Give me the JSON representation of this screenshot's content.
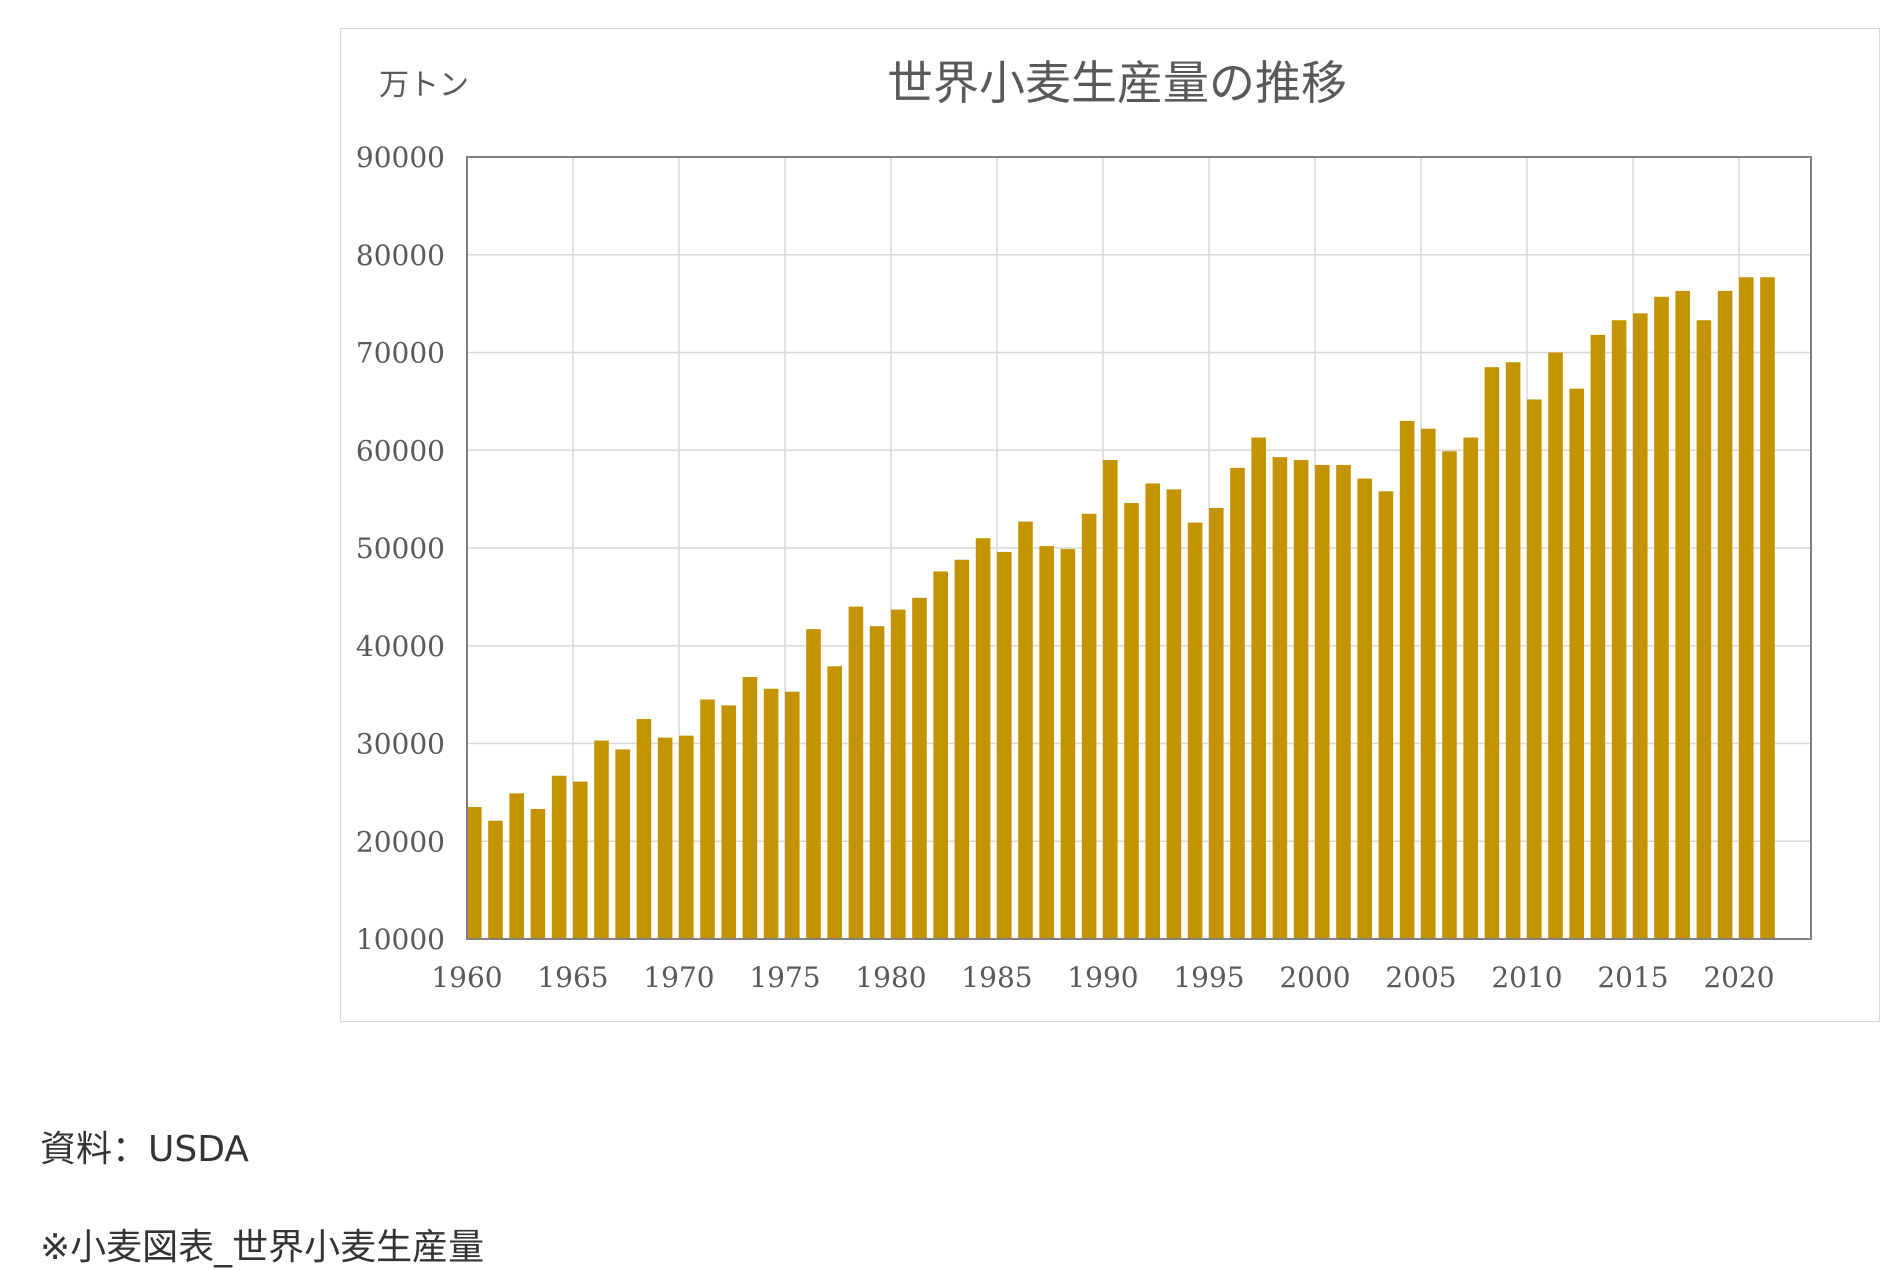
{
  "source_line": "資料：USDA",
  "note_line": "※小麦図表_世界小麦生産量",
  "chart_data": {
    "type": "bar",
    "title": "世界小麦生産量の推移",
    "unit_label": "万トン",
    "xlabel": "",
    "ylabel": "",
    "ylim": [
      10000,
      90000
    ],
    "y_ticks": [
      10000,
      20000,
      30000,
      40000,
      50000,
      60000,
      70000,
      80000,
      90000
    ],
    "y_tick_labels": [
      "10000",
      "20000",
      "30000",
      "40000",
      "50000",
      "60000",
      "70000",
      "80000",
      "90000"
    ],
    "x_tick_labels": [
      "1960",
      "1965",
      "1970",
      "1975",
      "1980",
      "1985",
      "1990",
      "1995",
      "2000",
      "2005",
      "2010",
      "2015",
      "2020"
    ],
    "grid": true,
    "legend": "none",
    "bar_color": "#c49400",
    "categories": [
      1960,
      1961,
      1962,
      1963,
      1964,
      1965,
      1966,
      1967,
      1968,
      1969,
      1970,
      1971,
      1972,
      1973,
      1974,
      1975,
      1976,
      1977,
      1978,
      1979,
      1980,
      1981,
      1982,
      1983,
      1984,
      1985,
      1986,
      1987,
      1988,
      1989,
      1990,
      1991,
      1992,
      1993,
      1994,
      1995,
      1996,
      1997,
      1998,
      1999,
      2000,
      2001,
      2002,
      2003,
      2004,
      2005,
      2006,
      2007,
      2008,
      2009,
      2010,
      2011,
      2012,
      2013,
      2014,
      2015,
      2016,
      2017,
      2018,
      2019,
      2020,
      2021
    ],
    "values": [
      23500,
      22100,
      24900,
      23300,
      26700,
      26100,
      30300,
      29400,
      32500,
      30600,
      30800,
      34500,
      33900,
      36800,
      35600,
      35300,
      41700,
      37900,
      44000,
      42000,
      43700,
      44900,
      47600,
      48800,
      51000,
      49600,
      52700,
      50200,
      49900,
      53500,
      59000,
      54600,
      56600,
      56000,
      52600,
      54100,
      58200,
      61300,
      59300,
      59000,
      58500,
      58500,
      57100,
      55800,
      63000,
      62200,
      59900,
      61300,
      68500,
      69000,
      65200,
      70000,
      66300,
      71800,
      73300,
      74000,
      75700,
      76300,
      73300,
      76300,
      77700,
      77700
    ]
  }
}
